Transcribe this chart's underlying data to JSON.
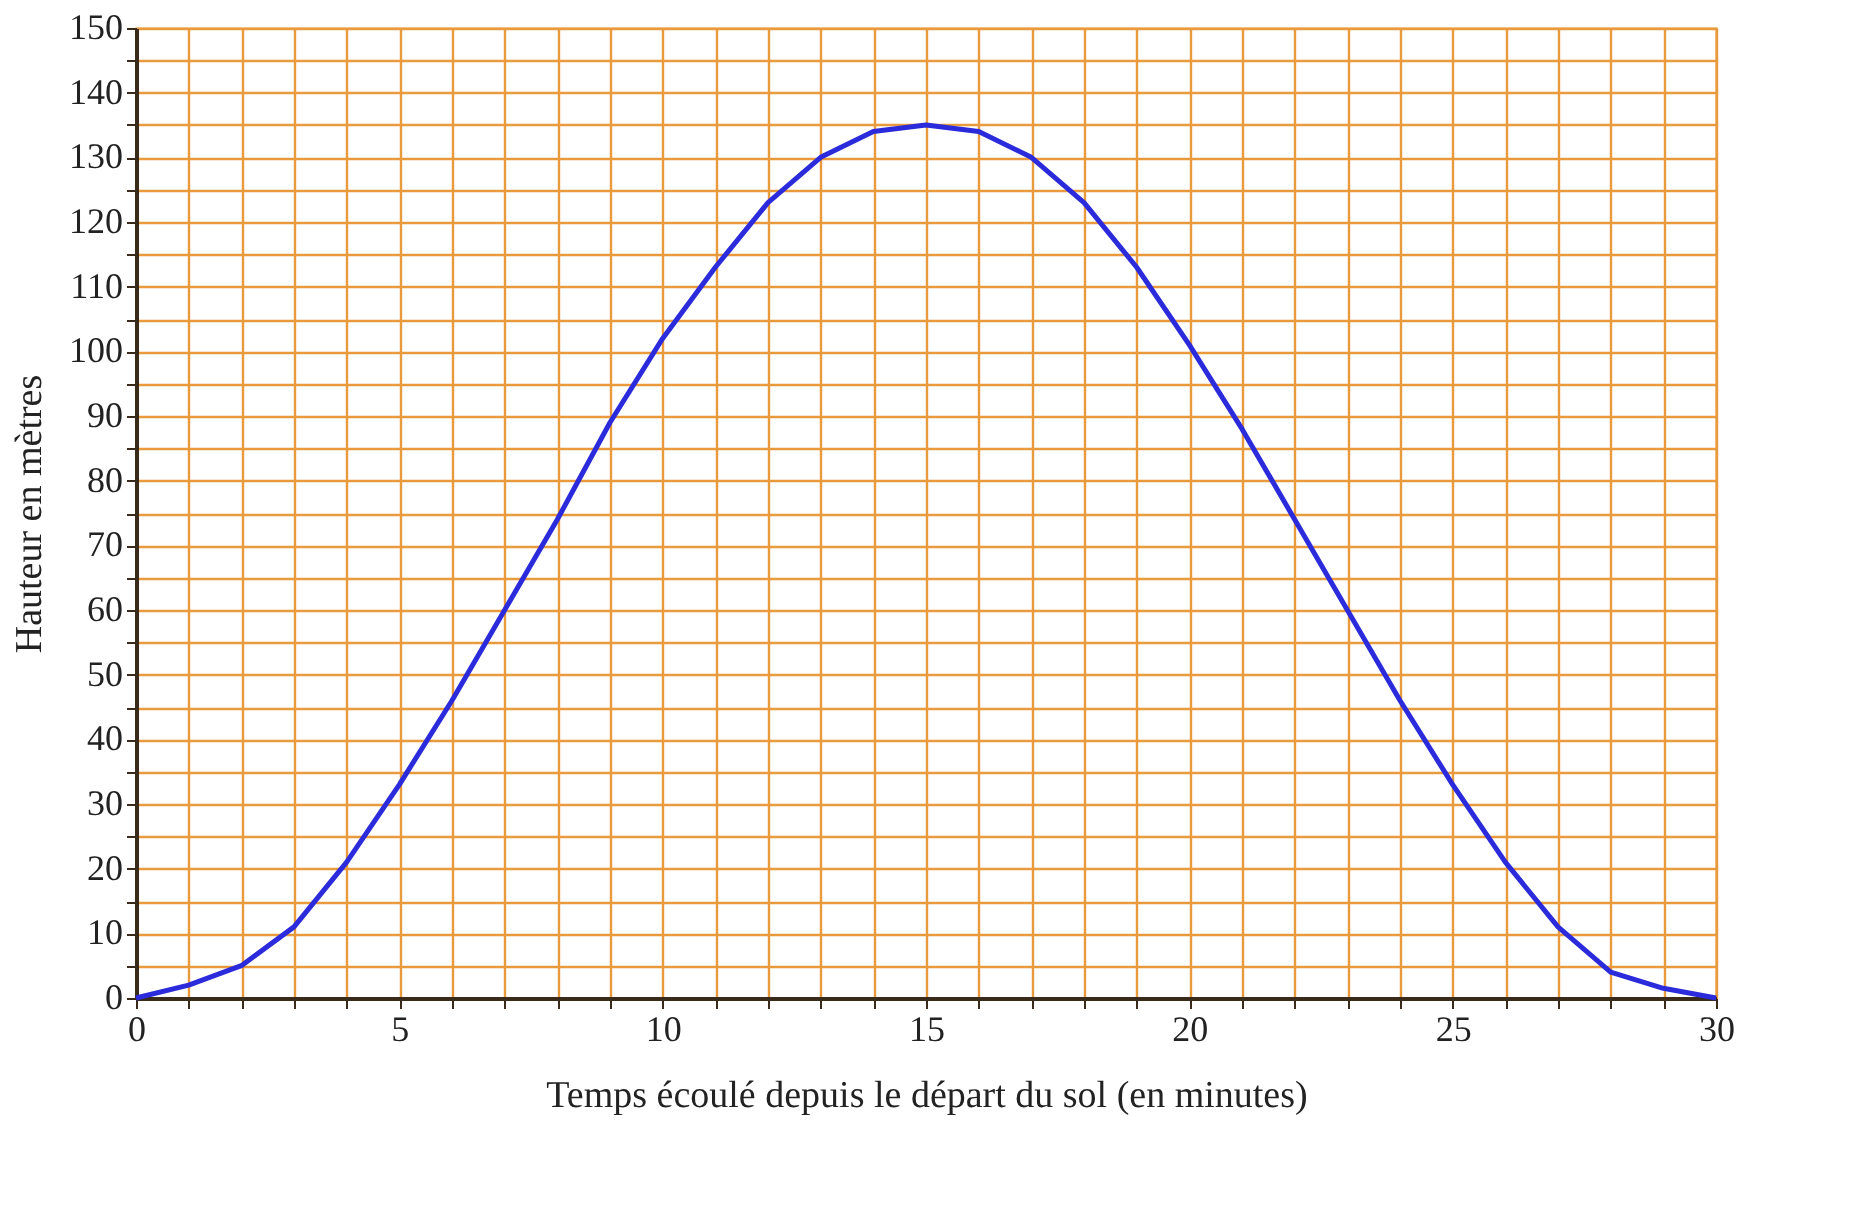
{
  "chart_data": {
    "type": "line",
    "xlabel": "Temps écoulé depuis le départ du sol (en minutes)",
    "ylabel": "Hauteur en mètres",
    "x": [
      0,
      1,
      2,
      3,
      4,
      5,
      6,
      7,
      8,
      9,
      10,
      11,
      12,
      13,
      14,
      15,
      16,
      17,
      18,
      19,
      20,
      21,
      22,
      23,
      24,
      25,
      26,
      27,
      28,
      29,
      30
    ],
    "series": [
      {
        "color": "#2b2bdb",
        "values": [
          0,
          2,
          5,
          11,
          21,
          33,
          46,
          60,
          74,
          89,
          102,
          113,
          123,
          130,
          134,
          135,
          134,
          130,
          123,
          113,
          101,
          88,
          74,
          60,
          46,
          33,
          21,
          11,
          4,
          1.5,
          0
        ]
      }
    ],
    "xlim": [
      0,
      30
    ],
    "ylim": [
      0,
      150
    ],
    "xticks": [
      0,
      {
        "value": 1,
        "label": null
      },
      {
        "value": 2,
        "label": null
      },
      {
        "value": 3,
        "label": null
      },
      {
        "value": 4,
        "label": null
      },
      5,
      {
        "value": 6,
        "label": null
      },
      {
        "value": 7,
        "label": null
      },
      {
        "value": 8,
        "label": null
      },
      {
        "value": 9,
        "label": null
      },
      10,
      {
        "value": 11,
        "label": null
      },
      {
        "value": 12,
        "label": null
      },
      {
        "value": 13,
        "label": null
      },
      {
        "value": 14,
        "label": null
      },
      15,
      {
        "value": 16,
        "label": null
      },
      {
        "value": 17,
        "label": null
      },
      {
        "value": 18,
        "label": null
      },
      {
        "value": 19,
        "label": null
      },
      20,
      {
        "value": 21,
        "label": null
      },
      {
        "value": 22,
        "label": null
      },
      {
        "value": 23,
        "label": null
      },
      {
        "value": 24,
        "label": null
      },
      25,
      {
        "value": 26,
        "label": null
      },
      {
        "value": 27,
        "label": null
      },
      {
        "value": 28,
        "label": null
      },
      {
        "value": 29,
        "label": null
      },
      30
    ],
    "yticks": [
      0,
      {
        "value": 5,
        "label": null
      },
      10,
      {
        "value": 15,
        "label": null
      },
      20,
      {
        "value": 25,
        "label": null
      },
      30,
      {
        "value": 35,
        "label": null
      },
      40,
      {
        "value": 45,
        "label": null
      },
      50,
      {
        "value": 55,
        "label": null
      },
      60,
      {
        "value": 65,
        "label": null
      },
      70,
      {
        "value": 75,
        "label": null
      },
      80,
      {
        "value": 85,
        "label": null
      },
      90,
      {
        "value": 95,
        "label": null
      },
      100,
      {
        "value": 105,
        "label": null
      },
      110,
      {
        "value": 115,
        "label": null
      },
      120,
      {
        "value": 125,
        "label": null
      },
      130,
      {
        "value": 135,
        "label": null
      },
      140,
      {
        "value": 145,
        "label": null
      },
      150
    ],
    "grid": true,
    "marker": "none",
    "line_style": "solid"
  }
}
